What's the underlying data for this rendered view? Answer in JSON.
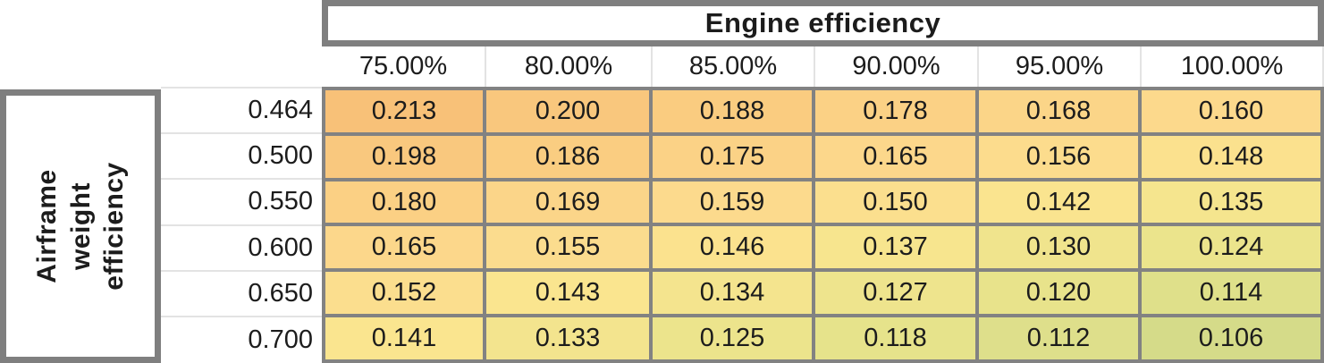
{
  "colors": {
    "header_border": "#7F7F7F",
    "grid_line": "#828282",
    "light_line": "#E3E3E3",
    "text": "#1C1C1C"
  },
  "chart_data": {
    "type": "heatmap",
    "title": "",
    "x_title": "Engine efficiency",
    "y_title": "Airframe weight efficiency",
    "columns": [
      "75.00%",
      "80.00%",
      "85.00%",
      "90.00%",
      "95.00%",
      "100.00%"
    ],
    "rows": [
      "0.464",
      "0.500",
      "0.550",
      "0.600",
      "0.650",
      "0.700"
    ],
    "values": [
      [
        "0.213",
        "0.200",
        "0.188",
        "0.178",
        "0.168",
        "0.160"
      ],
      [
        "0.198",
        "0.186",
        "0.175",
        "0.165",
        "0.156",
        "0.148"
      ],
      [
        "0.180",
        "0.169",
        "0.159",
        "0.150",
        "0.142",
        "0.135"
      ],
      [
        "0.165",
        "0.155",
        "0.146",
        "0.137",
        "0.130",
        "0.124"
      ],
      [
        "0.152",
        "0.143",
        "0.134",
        "0.127",
        "0.120",
        "0.114"
      ],
      [
        "0.141",
        "0.133",
        "0.125",
        "0.118",
        "0.112",
        "0.106"
      ]
    ],
    "cell_colors": [
      [
        "#F8C178",
        "#F9C77D",
        "#FACC80",
        "#FBD185",
        "#FBD588",
        "#FCD98C"
      ],
      [
        "#F9C87E",
        "#FACD81",
        "#FBD286",
        "#FCD78B",
        "#FCDC8D",
        "#FBE18E"
      ],
      [
        "#FBD084",
        "#FBD589",
        "#FCDA8D",
        "#FBDF8E",
        "#FAE48F",
        "#F5E58E"
      ],
      [
        "#FCD78B",
        "#FBDC8E",
        "#FBE28E",
        "#F7E58E",
        "#F0E48D",
        "#EBE48C"
      ],
      [
        "#FBDE8E",
        "#FAE58F",
        "#F4E48E",
        "#EEE48D",
        "#E8E38B",
        "#DFE08A"
      ],
      [
        "#FAE58F",
        "#F3E48E",
        "#ECE48C",
        "#E6E38B",
        "#DEDF8B",
        "#D5DB89"
      ]
    ],
    "value_range": [
      0.106,
      0.213
    ],
    "legend": "none",
    "grid": true
  }
}
